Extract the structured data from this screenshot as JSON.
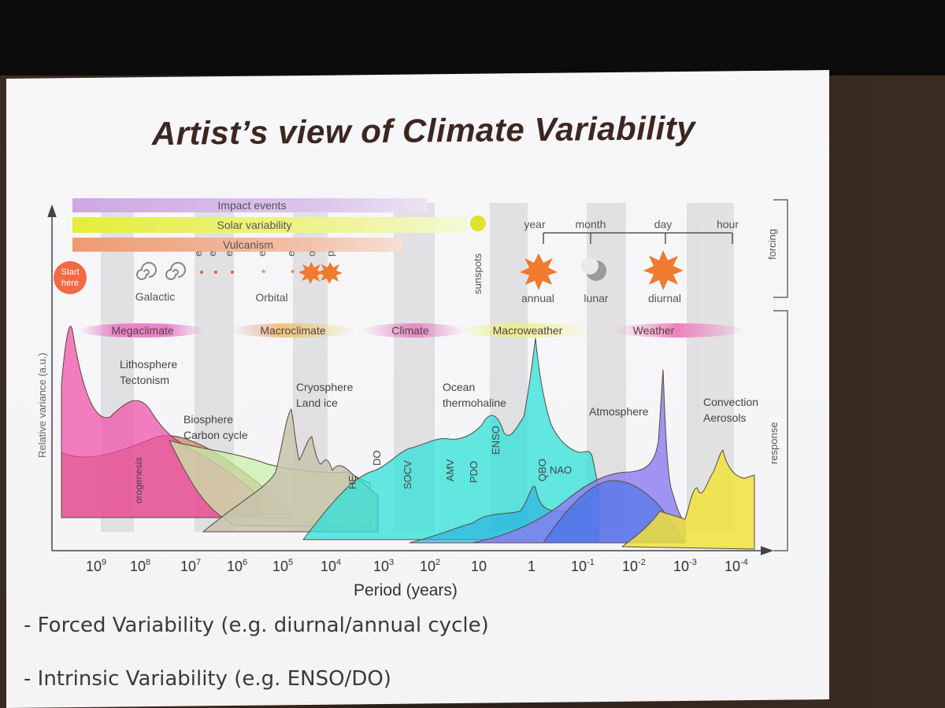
{
  "slide": {
    "title": "Artist’s view of Climate Variability",
    "bullets": [
      "- Forced Variability (e.g. diurnal/annual cycle)",
      "- Intrinsic Variability (e.g. ENSO/DO)"
    ]
  },
  "forcing": {
    "bars": [
      {
        "label": "Impact events",
        "color": "#d9b6e9"
      },
      {
        "label": "Solar variability",
        "color": "#e6ef42"
      },
      {
        "label": "Vulcanism",
        "color": "#f0a27c"
      }
    ],
    "start_label": [
      "Start",
      "here"
    ],
    "galactic_label": "Galactic",
    "orbital_label": "Orbital",
    "orbital_letters": [
      "e",
      "e",
      "e",
      "e",
      "e",
      "o",
      "p"
    ],
    "sunspots_label": "sunspots",
    "cycle_labels": [
      "year",
      "month",
      "day",
      "hour"
    ],
    "cycle_icons": [
      {
        "icon": "annual-sun-icon",
        "label": "annual"
      },
      {
        "icon": "lunar-moon-icon",
        "label": "lunar"
      },
      {
        "icon": "diurnal-sun-icon",
        "label": "diurnal"
      }
    ],
    "side_label": "forcing"
  },
  "regimes": [
    "Megaclimate",
    "Macroclimate",
    "Climate",
    "Macroweather",
    "Weather"
  ],
  "response": {
    "side_label": "response",
    "y_label": "Relative variance (a.u.)",
    "x_label": "Period (years)",
    "x_ticks": [
      {
        "base": "10",
        "exp": "9"
      },
      {
        "base": "10",
        "exp": "8"
      },
      {
        "base": "10",
        "exp": "7"
      },
      {
        "base": "10",
        "exp": "6"
      },
      {
        "base": "10",
        "exp": "5"
      },
      {
        "base": "10",
        "exp": "4"
      },
      {
        "base": "10",
        "exp": "3"
      },
      {
        "base": "10",
        "exp": "2"
      },
      {
        "base": "10",
        "exp": ""
      },
      {
        "base": "1",
        "exp": ""
      },
      {
        "base": "10",
        "exp": "-1"
      },
      {
        "base": "10",
        "exp": "-2"
      },
      {
        "base": "10",
        "exp": "-3"
      },
      {
        "base": "10",
        "exp": "-4"
      }
    ],
    "labels": {
      "lithosphere": [
        "Lithosphere",
        "Tectonism"
      ],
      "biosphere": [
        "Biosphere",
        "Carbon cycle"
      ],
      "cryosphere": [
        "Cryosphere",
        "Land ice"
      ],
      "ocean": [
        "Ocean",
        "thermohaline"
      ],
      "atmosphere": "Atmosphere",
      "convection": [
        "Convection",
        "Aerosols"
      ],
      "orogenesis": "orogenesis",
      "he": "HE",
      "do": "DO",
      "socv": "SOCV",
      "amv": "AMV",
      "pdo": "PDO",
      "enso": "ENSO",
      "qbo": "QBO",
      "nao": "NAO"
    }
  }
}
